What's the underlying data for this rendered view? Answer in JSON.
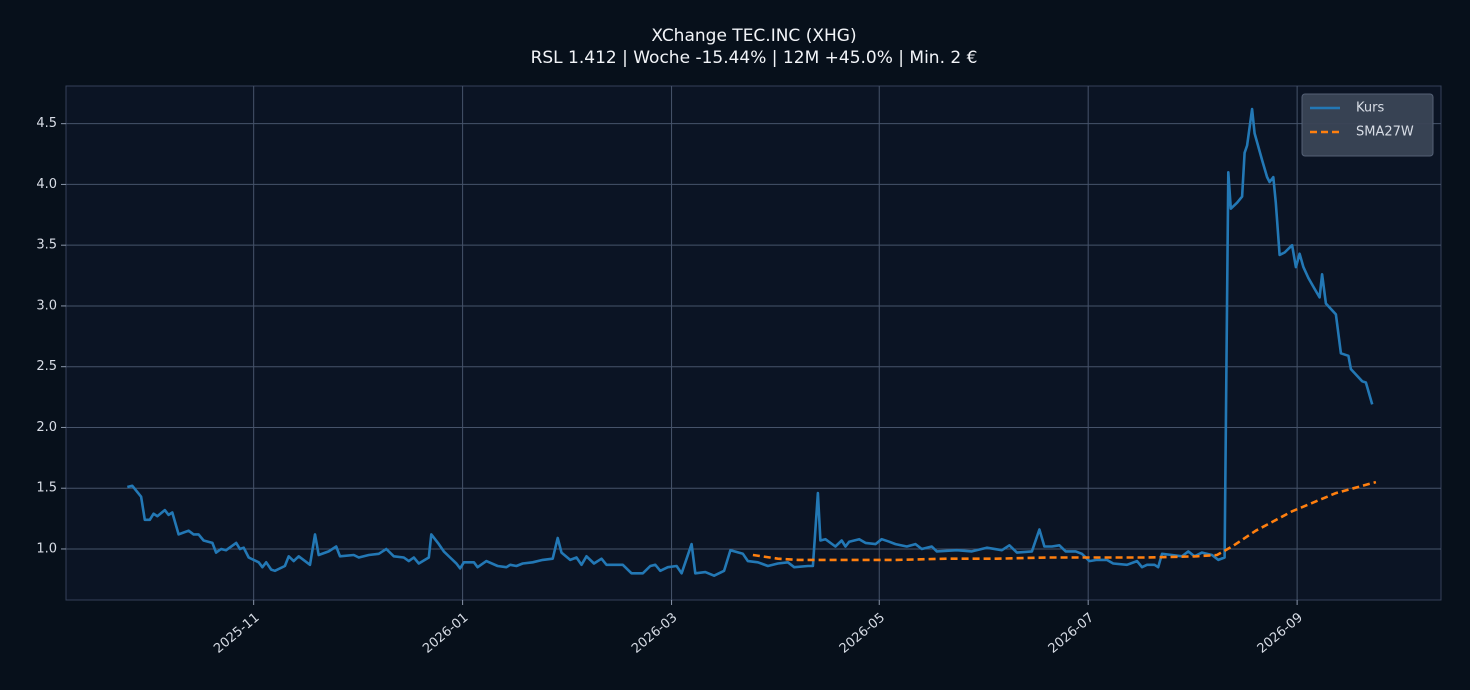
{
  "chart_data": {
    "type": "line",
    "title": "XChange TEC.INC (XHG)",
    "subtitle": "RSL 1.412 | Woche -15.44% | 12M +45.0% | Min. 2 €",
    "xlim": [
      2025.683,
      2026.782
    ],
    "xticks": [
      {
        "value": 2025.833,
        "label": "2025-11"
      },
      {
        "value": 2026.0,
        "label": "2026-01"
      },
      {
        "value": 2026.167,
        "label": "2026-03"
      },
      {
        "value": 2026.333,
        "label": "2026-05"
      },
      {
        "value": 2026.5,
        "label": "2026-07"
      },
      {
        "value": 2026.667,
        "label": "2026-09"
      }
    ],
    "ylim": [
      0.58,
      4.81
    ],
    "yticks": [
      {
        "value": 1,
        "label": "1.0"
      },
      {
        "value": 1.5,
        "label": "1.5"
      },
      {
        "value": 2,
        "label": "2.0"
      },
      {
        "value": 2.5,
        "label": "2.5"
      },
      {
        "value": 3,
        "label": "3.0"
      },
      {
        "value": 3.5,
        "label": "3.5"
      },
      {
        "value": 4,
        "label": "4.0"
      },
      {
        "value": 4.5,
        "label": "4.5"
      }
    ],
    "grid": true,
    "legend": "upper right",
    "series": [
      {
        "name": "Kurs",
        "color": "#2378b5",
        "linestyle": "solid",
        "x": [
          2025.732,
          2025.736,
          2025.743,
          2025.746,
          2025.75,
          2025.753,
          2025.756,
          2025.762,
          2025.765,
          2025.768,
          2025.773,
          2025.781,
          2025.785,
          2025.789,
          2025.793,
          2025.8,
          2025.803,
          2025.807,
          2025.811,
          2025.819,
          2025.822,
          2025.825,
          2025.829,
          2025.837,
          2025.84,
          2025.843,
          2025.847,
          2025.85,
          2025.858,
          2025.861,
          2025.865,
          2025.869,
          2025.878,
          2025.882,
          2025.885,
          2025.893,
          2025.899,
          2025.902,
          2025.913,
          2025.917,
          2025.925,
          2025.933,
          2025.939,
          2025.945,
          2025.953,
          2025.957,
          2025.961,
          2025.965,
          2025.973,
          2025.975,
          2025.981,
          2025.985,
          2025.99,
          2025.995,
          2025.998,
          2026.001,
          2026.009,
          2026.012,
          2026.019,
          2026.028,
          2026.035,
          2026.038,
          2026.043,
          2026.048,
          2026.056,
          2026.064,
          2026.072,
          2026.076,
          2026.079,
          2026.086,
          2026.091,
          2026.095,
          2026.099,
          2026.105,
          2026.111,
          2026.115,
          2026.128,
          2026.135,
          2026.144,
          2026.15,
          2026.154,
          2026.158,
          2026.164,
          2026.171,
          2026.175,
          2026.183,
          2026.186,
          2026.194,
          2026.201,
          2026.209,
          2026.214,
          2026.224,
          2026.228,
          2026.236,
          2026.244,
          2026.252,
          2026.26,
          2026.265,
          2026.276,
          2026.28,
          2026.284,
          2026.286,
          2026.29,
          2026.298,
          2026.303,
          2026.306,
          2026.309,
          2026.317,
          2026.322,
          2026.33,
          2026.335,
          2026.341,
          2026.346,
          2026.355,
          2026.362,
          2026.367,
          2026.375,
          2026.379,
          2026.395,
          2026.407,
          2026.419,
          2026.431,
          2026.437,
          2026.443,
          2026.455,
          2026.461,
          2026.465,
          2026.471,
          2026.477,
          2026.482,
          2026.49,
          2026.495,
          2026.501,
          2026.507,
          2026.515,
          2026.52,
          2026.531,
          2026.539,
          2026.543,
          2026.547,
          2026.553,
          2026.556,
          2026.559,
          2026.567,
          2026.575,
          2026.58,
          2026.585,
          2026.591,
          2026.599,
          2026.604,
          2026.609,
          2026.612,
          2026.614,
          2026.619,
          2026.623,
          2026.625,
          2026.627,
          2026.631,
          2026.633,
          2026.639,
          2026.643,
          2026.645,
          2026.648,
          2026.65,
          2026.653,
          2026.657,
          2026.663,
          2026.666,
          2026.669,
          2026.672,
          2026.676,
          2026.681,
          2026.685,
          2026.687,
          2026.69,
          2026.698,
          2026.702,
          2026.708,
          2026.71,
          2026.719,
          2026.722,
          2026.727
        ],
        "values": [
          1.51,
          1.52,
          1.43,
          1.24,
          1.24,
          1.29,
          1.27,
          1.32,
          1.28,
          1.3,
          1.12,
          1.15,
          1.12,
          1.12,
          1.07,
          1.05,
          0.97,
          1.0,
          0.99,
          1.05,
          1.0,
          1.01,
          0.93,
          0.89,
          0.85,
          0.89,
          0.83,
          0.82,
          0.86,
          0.94,
          0.9,
          0.94,
          0.87,
          1.12,
          0.95,
          0.98,
          1.02,
          0.94,
          0.95,
          0.93,
          0.95,
          0.96,
          1.0,
          0.94,
          0.93,
          0.9,
          0.93,
          0.88,
          0.93,
          1.12,
          1.04,
          0.98,
          0.93,
          0.88,
          0.84,
          0.89,
          0.89,
          0.85,
          0.9,
          0.86,
          0.85,
          0.87,
          0.86,
          0.88,
          0.89,
          0.91,
          0.92,
          1.09,
          0.97,
          0.91,
          0.93,
          0.87,
          0.94,
          0.88,
          0.92,
          0.87,
          0.87,
          0.8,
          0.8,
          0.86,
          0.87,
          0.82,
          0.85,
          0.86,
          0.8,
          1.04,
          0.8,
          0.81,
          0.78,
          0.82,
          0.99,
          0.96,
          0.9,
          0.89,
          0.86,
          0.88,
          0.89,
          0.85,
          0.86,
          0.86,
          1.46,
          1.07,
          1.08,
          1.02,
          1.07,
          1.02,
          1.06,
          1.08,
          1.05,
          1.04,
          1.08,
          1.06,
          1.04,
          1.02,
          1.04,
          1.0,
          1.02,
          0.98,
          0.99,
          0.98,
          1.01,
          0.99,
          1.03,
          0.97,
          0.98,
          1.16,
          1.02,
          1.02,
          1.03,
          0.98,
          0.98,
          0.96,
          0.9,
          0.91,
          0.91,
          0.88,
          0.87,
          0.9,
          0.85,
          0.87,
          0.87,
          0.85,
          0.96,
          0.95,
          0.94,
          0.98,
          0.94,
          0.97,
          0.95,
          0.91,
          0.93,
          4.1,
          3.8,
          3.85,
          3.9,
          4.26,
          4.32,
          4.62,
          4.42,
          4.2,
          4.06,
          4.02,
          4.06,
          3.85,
          3.42,
          3.44,
          3.5,
          3.32,
          3.43,
          3.32,
          3.23,
          3.14,
          3.07,
          3.26,
          3.02,
          2.93,
          2.61,
          2.59,
          2.48,
          2.38,
          2.37,
          2.19
        ]
      },
      {
        "name": "SMA27W",
        "color": "#ff7f0e",
        "linestyle": "dashed",
        "x": [
          2026.232,
          2026.252,
          2026.268,
          2026.308,
          2026.347,
          2026.387,
          2026.427,
          2026.467,
          2026.507,
          2026.547,
          2026.587,
          2026.603,
          2026.615,
          2026.634,
          2026.663,
          2026.698,
          2026.73
        ],
        "values": [
          0.95,
          0.92,
          0.91,
          0.91,
          0.91,
          0.92,
          0.92,
          0.93,
          0.93,
          0.93,
          0.94,
          0.95,
          1.02,
          1.15,
          1.31,
          1.46,
          1.55
        ]
      }
    ]
  }
}
